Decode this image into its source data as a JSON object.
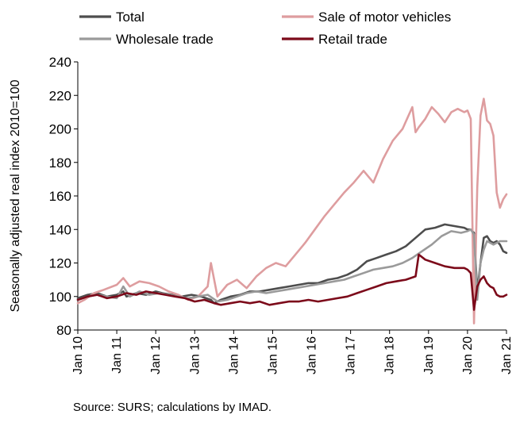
{
  "chart_data": {
    "type": "line",
    "ylabel": "Seasonally adjusted real index 2010=100",
    "xlabel": "",
    "ylim": [
      80,
      240
    ],
    "yticks": [
      80,
      100,
      120,
      140,
      160,
      180,
      200,
      220,
      240
    ],
    "xlim": [
      "2010-01",
      "2021-01"
    ],
    "xticks": [
      "Jan 10",
      "Jan 11",
      "Jan 12",
      "Jan 13",
      "Jan 14",
      "Jan 15",
      "Jan 16",
      "Jan 17",
      "Jan 18",
      "Jan 19",
      "Jan 20",
      "Jan 21"
    ],
    "grid": "none",
    "legend_position": "top",
    "source_note": "Source: SURS; calculations by IMAD.",
    "series": [
      {
        "name": "Total",
        "color": "#4d4d4d",
        "x": [
          "2010-01",
          "2010-04",
          "2010-07",
          "2010-10",
          "2011-01",
          "2011-03",
          "2011-04",
          "2011-07",
          "2011-10",
          "2012-01",
          "2012-03",
          "2012-06",
          "2012-09",
          "2012-12",
          "2013-03",
          "2013-06",
          "2013-07",
          "2013-09",
          "2013-12",
          "2014-03",
          "2014-06",
          "2014-09",
          "2014-12",
          "2015-03",
          "2015-06",
          "2015-09",
          "2015-12",
          "2016-03",
          "2016-06",
          "2016-09",
          "2016-12",
          "2017-03",
          "2017-06",
          "2017-09",
          "2017-12",
          "2018-03",
          "2018-06",
          "2018-09",
          "2018-12",
          "2019-03",
          "2019-06",
          "2019-09",
          "2019-12",
          "2020-01",
          "2020-02",
          "2020-03",
          "2020-04",
          "2020-05",
          "2020-06",
          "2020-07",
          "2020-08",
          "2020-09",
          "2020-10",
          "2020-11",
          "2020-12",
          "2021-01"
        ],
        "y": [
          99,
          101,
          102,
          100,
          101,
          103,
          100,
          102,
          101,
          103,
          102,
          101,
          100,
          101,
          100,
          98,
          96,
          98,
          100,
          101,
          103,
          103,
          104,
          105,
          106,
          107,
          108,
          108,
          110,
          111,
          113,
          116,
          121,
          123,
          125,
          127,
          130,
          135,
          140,
          141,
          143,
          142,
          141,
          140,
          140,
          138,
          103,
          120,
          135,
          136,
          133,
          132,
          133,
          131,
          127,
          126
        ]
      },
      {
        "name": "Sale of motor vehicles",
        "color": "#de9d9f",
        "x": [
          "2010-01",
          "2010-03",
          "2010-06",
          "2010-09",
          "2011-01",
          "2011-03",
          "2011-05",
          "2011-08",
          "2011-11",
          "2012-02",
          "2012-05",
          "2012-08",
          "2012-11",
          "2013-02",
          "2013-05",
          "2013-06",
          "2013-08",
          "2013-11",
          "2014-02",
          "2014-05",
          "2014-08",
          "2014-11",
          "2015-02",
          "2015-05",
          "2015-08",
          "2015-11",
          "2016-02",
          "2016-05",
          "2016-08",
          "2016-11",
          "2017-02",
          "2017-05",
          "2017-08",
          "2017-11",
          "2018-02",
          "2018-05",
          "2018-08",
          "2018-09",
          "2018-10",
          "2018-12",
          "2019-02",
          "2019-04",
          "2019-06",
          "2019-08",
          "2019-10",
          "2019-12",
          "2020-01",
          "2020-02",
          "2020-03",
          "2020-04",
          "2020-05",
          "2020-06",
          "2020-07",
          "2020-08",
          "2020-09",
          "2020-10",
          "2020-11",
          "2020-12",
          "2021-01"
        ],
        "y": [
          96,
          98,
          102,
          104,
          107,
          111,
          106,
          109,
          108,
          106,
          103,
          101,
          98,
          100,
          106,
          120,
          100,
          107,
          110,
          105,
          112,
          117,
          120,
          118,
          125,
          132,
          140,
          148,
          155,
          162,
          168,
          175,
          168,
          182,
          193,
          200,
          213,
          198,
          201,
          206,
          213,
          209,
          204,
          210,
          212,
          210,
          211,
          206,
          84,
          165,
          208,
          218,
          205,
          203,
          196,
          162,
          153,
          158,
          161
        ]
      },
      {
        "name": "Wholesale trade",
        "color": "#9a9a9a",
        "x": [
          "2010-01",
          "2010-04",
          "2010-07",
          "2010-10",
          "2011-01",
          "2011-03",
          "2011-05",
          "2011-08",
          "2011-11",
          "2012-02",
          "2012-05",
          "2012-08",
          "2012-11",
          "2013-02",
          "2013-05",
          "2013-08",
          "2013-11",
          "2014-02",
          "2014-05",
          "2014-08",
          "2014-11",
          "2015-02",
          "2015-05",
          "2015-08",
          "2015-11",
          "2016-02",
          "2016-05",
          "2016-08",
          "2016-11",
          "2017-02",
          "2017-05",
          "2017-08",
          "2017-11",
          "2018-02",
          "2018-05",
          "2018-08",
          "2018-11",
          "2019-02",
          "2019-05",
          "2019-08",
          "2019-11",
          "2020-01",
          "2020-02",
          "2020-03",
          "2020-04",
          "2020-05",
          "2020-06",
          "2020-07",
          "2020-08",
          "2020-09",
          "2020-10",
          "2020-11",
          "2020-12",
          "2021-01"
        ],
        "y": [
          98,
          100,
          101,
          100,
          99,
          106,
          100,
          103,
          101,
          102,
          101,
          100,
          99,
          100,
          101,
          97,
          98,
          100,
          102,
          103,
          102,
          103,
          104,
          105,
          106,
          107,
          108,
          109,
          110,
          112,
          114,
          116,
          117,
          118,
          120,
          123,
          127,
          131,
          136,
          139,
          138,
          139,
          140,
          137,
          98,
          120,
          128,
          133,
          132,
          131,
          132,
          133,
          133,
          133
        ]
      },
      {
        "name": "Retail trade",
        "color": "#7c0a1a",
        "x": [
          "2010-01",
          "2010-04",
          "2010-07",
          "2010-10",
          "2011-01",
          "2011-04",
          "2011-07",
          "2011-10",
          "2012-01",
          "2012-04",
          "2012-07",
          "2012-10",
          "2013-01",
          "2013-04",
          "2013-07",
          "2013-09",
          "2013-12",
          "2014-03",
          "2014-06",
          "2014-09",
          "2014-12",
          "2015-03",
          "2015-06",
          "2015-09",
          "2015-12",
          "2016-03",
          "2016-06",
          "2016-09",
          "2016-12",
          "2017-03",
          "2017-06",
          "2017-09",
          "2017-12",
          "2018-03",
          "2018-06",
          "2018-09",
          "2018-10",
          "2018-12",
          "2019-03",
          "2019-06",
          "2019-09",
          "2019-12",
          "2020-01",
          "2020-02",
          "2020-03",
          "2020-04",
          "2020-05",
          "2020-06",
          "2020-07",
          "2020-08",
          "2020-09",
          "2020-10",
          "2020-11",
          "2020-12",
          "2021-01"
        ],
        "y": [
          98,
          100,
          101,
          99,
          100,
          102,
          101,
          103,
          102,
          101,
          100,
          99,
          97,
          98,
          96,
          95,
          96,
          97,
          96,
          97,
          95,
          96,
          97,
          97,
          98,
          97,
          98,
          99,
          100,
          102,
          104,
          106,
          108,
          109,
          110,
          112,
          125,
          122,
          120,
          118,
          117,
          117,
          116,
          114,
          92,
          106,
          110,
          112,
          108,
          106,
          105,
          101,
          100,
          100,
          101
        ]
      }
    ]
  }
}
